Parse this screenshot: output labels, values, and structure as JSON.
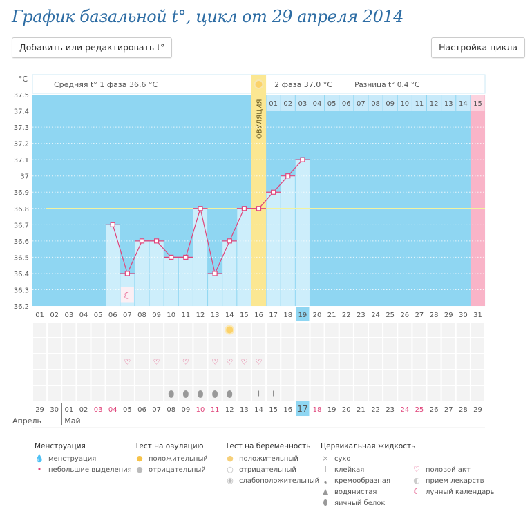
{
  "title": "График базальной t°, цикл от 29 апреля 2014",
  "buttons": {
    "edit": "Добавить или редактировать t°",
    "settings": "Настройка цикла"
  },
  "header": {
    "phase1": "Средняя t° 1 фаза 36.6 °C",
    "phase2": "2 фаза 37.0 °C",
    "diff": "Разница t° 0.4 °C",
    "ovulation": "ОВУЛЯЦИЯ"
  },
  "colors": {
    "bg": "#8fd6f2",
    "bar": "#cdeefb",
    "line": "#e0457b",
    "ovulation": "#fbe792",
    "period": "#f9b4c8",
    "coverline": "#f2f2a0",
    "today": "#8fd6f2"
  },
  "chart_data": {
    "type": "line",
    "ylabel": "°C",
    "ylim": [
      36.2,
      37.5
    ],
    "yticks": [
      "37.5",
      "37.4",
      "37.3",
      "37.2",
      "37.1",
      "37",
      "36.9",
      "36.8",
      "36.7",
      "36.6",
      "36.5",
      "36.4",
      "36.3",
      "36.2"
    ],
    "cycle_days": [
      "01",
      "02",
      "03",
      "04",
      "05",
      "06",
      "07",
      "08",
      "09",
      "10",
      "11",
      "12",
      "13",
      "14",
      "15",
      "16",
      "17",
      "18",
      "19",
      "20",
      "21",
      "22",
      "23",
      "24",
      "25",
      "26",
      "27",
      "28",
      "29",
      "30",
      "31"
    ],
    "temps": [
      null,
      null,
      null,
      null,
      null,
      36.7,
      36.4,
      36.6,
      36.6,
      36.5,
      36.5,
      36.8,
      36.4,
      36.6,
      36.8,
      36.8,
      36.9,
      37.0,
      37.1,
      null,
      null,
      null,
      null,
      null,
      null,
      null,
      null,
      null,
      null,
      null,
      null
    ],
    "coverline": 36.8,
    "ovulation_day": 16,
    "today_day": 19,
    "phase2_days": [
      "01",
      "02",
      "03",
      "04",
      "05",
      "06",
      "07",
      "08",
      "09",
      "10",
      "11",
      "12",
      "13",
      "14",
      "15"
    ],
    "dates": [
      "29",
      "30",
      "01",
      "02",
      "03",
      "04",
      "05",
      "06",
      "07",
      "08",
      "09",
      "10",
      "11",
      "12",
      "13",
      "14",
      "15",
      "16",
      "17",
      "18",
      "19",
      "20",
      "21",
      "22",
      "23",
      "24",
      "25",
      "26",
      "27",
      "28",
      "29"
    ],
    "weekend_dates_idx": [
      4,
      5,
      11,
      12,
      19,
      25,
      26
    ],
    "months": [
      "Апрель",
      "Май"
    ]
  },
  "markers": {
    "ovulation_test_positive": [
      14
    ],
    "sex": [
      7,
      9,
      11,
      13,
      14,
      15,
      16
    ],
    "egg_white": [
      10,
      11,
      12,
      13,
      14
    ],
    "sticky": [
      16,
      17
    ],
    "moon": [
      7
    ]
  },
  "legend": [
    {
      "title": "Менструация",
      "items": [
        {
          "icon": "drop-large-icon",
          "label": "менструация"
        },
        {
          "icon": "drop-small-icon",
          "label": "небольшие выделения"
        }
      ]
    },
    {
      "title": "Тест на овуляцию",
      "items": [
        {
          "icon": "sun-positive-icon",
          "label": "положительный"
        },
        {
          "icon": "sun-negative-icon",
          "label": "отрицательный"
        }
      ]
    },
    {
      "title": "Тест на беременность",
      "items": [
        {
          "icon": "pregnancy-positive-icon",
          "label": "положительный"
        },
        {
          "icon": "pregnancy-negative-icon",
          "label": "отрицательный"
        },
        {
          "icon": "pregnancy-weak-icon",
          "label": "слабоположительный"
        }
      ]
    },
    {
      "title": "Цервикальная жидкость",
      "items": [
        {
          "icon": "dry-icon",
          "label": "сухо"
        },
        {
          "icon": "sticky-icon",
          "label": "клейкая"
        },
        {
          "icon": "creamy-icon",
          "label": "кремообразная"
        },
        {
          "icon": "watery-icon",
          "label": "водянистая"
        },
        {
          "icon": "egg-white-icon",
          "label": "яичный белок"
        }
      ]
    },
    {
      "title": "",
      "items": [
        {
          "icon": "heart-icon",
          "label": "половой акт"
        },
        {
          "icon": "pill-icon",
          "label": "прием лекарств"
        },
        {
          "icon": "moon-icon",
          "label": "лунный календарь"
        }
      ]
    }
  ]
}
